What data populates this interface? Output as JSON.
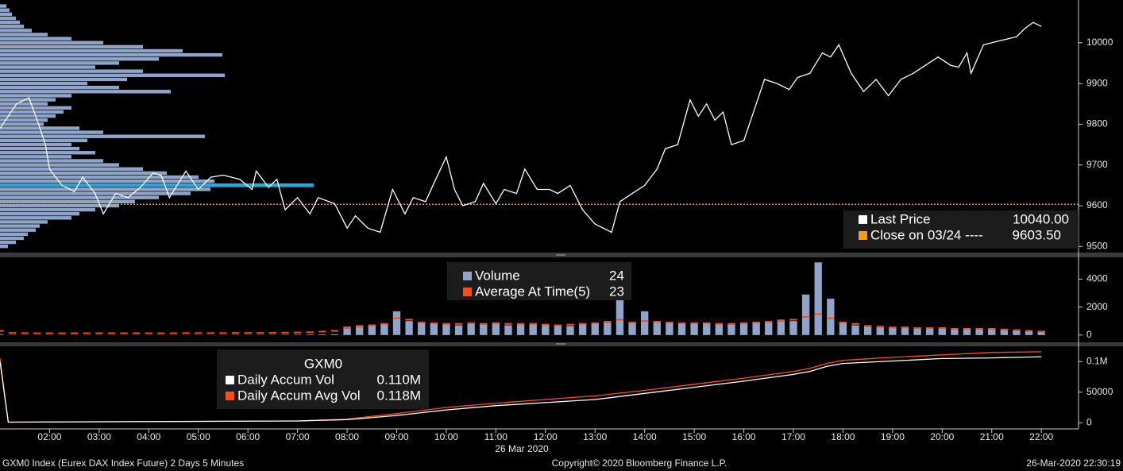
{
  "chart_data": [
    {
      "type": "line",
      "series": [
        {
          "name": "Last Price",
          "color": "#ffffff",
          "last_value": 10040,
          "last_value_label": "10040.00",
          "x": [
            "01:00",
            "01:20",
            "01:35",
            "01:45",
            "01:55",
            "02:00",
            "02:15",
            "02:30",
            "02:40",
            "02:55",
            "03:05",
            "03:20",
            "03:35",
            "03:50",
            "04:05",
            "04:15",
            "04:25",
            "04:45",
            "05:00",
            "05:15",
            "05:30",
            "05:50",
            "06:05",
            "06:10",
            "06:25",
            "06:35",
            "06:45",
            "07:00",
            "07:15",
            "07:25",
            "07:45",
            "08:00",
            "08:10",
            "08:25",
            "08:40",
            "08:55",
            "09:10",
            "09:20",
            "09:35",
            "09:45",
            "10:00",
            "10:10",
            "10:20",
            "10:35",
            "10:45",
            "11:00",
            "11:10",
            "11:25",
            "11:35",
            "11:50",
            "12:05",
            "12:15",
            "12:30",
            "12:45",
            "13:00",
            "13:20",
            "13:30",
            "13:45",
            "14:00",
            "14:15",
            "14:25",
            "14:40",
            "14:55",
            "15:05",
            "15:15",
            "15:25",
            "15:35",
            "15:45",
            "16:00",
            "16:15",
            "16:25",
            "16:40",
            "16:55",
            "17:05",
            "17:20",
            "17:35",
            "17:45",
            "17:55",
            "18:10",
            "18:25",
            "18:40",
            "18:55",
            "19:10",
            "19:25",
            "19:40",
            "19:55",
            "20:10",
            "20:20",
            "20:30",
            "20:35",
            "20:50",
            "21:10",
            "21:30",
            "21:40",
            "21:50",
            "22:00"
          ],
          "values": [
            9790,
            9850,
            9865,
            9810,
            9750,
            9690,
            9650,
            9635,
            9670,
            9630,
            9580,
            9630,
            9620,
            9645,
            9680,
            9675,
            9620,
            9685,
            9640,
            9670,
            9675,
            9665,
            9640,
            9685,
            9645,
            9665,
            9590,
            9620,
            9580,
            9620,
            9605,
            9545,
            9575,
            9545,
            9535,
            9640,
            9580,
            9620,
            9610,
            9655,
            9720,
            9640,
            9600,
            9610,
            9655,
            9605,
            9640,
            9630,
            9690,
            9640,
            9640,
            9630,
            9650,
            9590,
            9555,
            9535,
            9610,
            9630,
            9650,
            9690,
            9740,
            9750,
            9860,
            9820,
            9850,
            9810,
            9830,
            9750,
            9760,
            9850,
            9910,
            9900,
            9885,
            9915,
            9925,
            9975,
            9965,
            9995,
            9925,
            9880,
            9910,
            9870,
            9910,
            9925,
            9945,
            9965,
            9945,
            9940,
            9975,
            9925,
            9995,
            10005,
            10015,
            10035,
            10050,
            10040
          ]
        }
      ],
      "reference_line": {
        "name": "Close on 03/24 ----",
        "value": 9603.5,
        "value_label": "9603.50",
        "color": "#f39c12"
      },
      "volume_profile": {
        "color": "#8ea4c8",
        "poc_color": "#1fa8e0",
        "prices": [
          10090,
          10080,
          10070,
          10060,
          10050,
          10040,
          10030,
          10020,
          10010,
          10000,
          9990,
          9980,
          9970,
          9960,
          9950,
          9940,
          9930,
          9920,
          9910,
          9900,
          9890,
          9880,
          9870,
          9860,
          9850,
          9840,
          9830,
          9820,
          9810,
          9800,
          9790,
          9780,
          9770,
          9760,
          9750,
          9740,
          9730,
          9720,
          9710,
          9700,
          9690,
          9680,
          9670,
          9660,
          9650,
          9640,
          9630,
          9620,
          9610,
          9600,
          9590,
          9580,
          9570,
          9560,
          9550,
          9540,
          9530,
          9520,
          9510,
          9500
        ],
        "values": [
          8,
          12,
          15,
          20,
          25,
          30,
          40,
          60,
          90,
          130,
          180,
          230,
          280,
          200,
          150,
          120,
          180,
          283,
          160,
          110,
          150,
          215,
          90,
          70,
          60,
          90,
          80,
          70,
          60,
          55,
          100,
          130,
          258,
          110,
          90,
          100,
          120,
          90,
          130,
          150,
          180,
          210,
          250,
          270,
          395,
          265,
          240,
          200,
          170,
          150,
          120,
          100,
          90,
          60,
          50,
          45,
          35,
          30,
          20,
          10
        ]
      },
      "ylim": [
        9485,
        10105
      ],
      "yticks": [
        9500,
        9600,
        9700,
        9800,
        9900,
        10000
      ]
    },
    {
      "type": "bar",
      "x": [
        "01:00",
        "01:15",
        "01:30",
        "01:45",
        "02:00",
        "02:15",
        "02:30",
        "02:45",
        "03:00",
        "03:15",
        "03:30",
        "03:45",
        "04:00",
        "04:15",
        "04:30",
        "04:45",
        "05:00",
        "05:15",
        "05:30",
        "05:45",
        "06:00",
        "06:15",
        "06:30",
        "06:45",
        "07:00",
        "07:15",
        "07:30",
        "07:45",
        "08:00",
        "08:15",
        "08:30",
        "08:45",
        "09:00",
        "09:15",
        "09:30",
        "09:45",
        "10:00",
        "10:15",
        "10:30",
        "10:45",
        "11:00",
        "11:15",
        "11:30",
        "11:45",
        "12:00",
        "12:15",
        "12:30",
        "12:45",
        "13:00",
        "13:15",
        "13:30",
        "13:45",
        "14:00",
        "14:15",
        "14:30",
        "14:45",
        "15:00",
        "15:15",
        "15:30",
        "15:45",
        "16:00",
        "16:15",
        "16:30",
        "16:45",
        "17:00",
        "17:15",
        "17:30",
        "17:45",
        "18:00",
        "18:15",
        "18:30",
        "18:45",
        "19:00",
        "19:15",
        "19:30",
        "19:45",
        "20:00",
        "20:15",
        "20:30",
        "20:45",
        "21:00",
        "21:15",
        "21:30",
        "21:45",
        "22:00"
      ],
      "series": [
        {
          "name": "Volume",
          "color": "#8ea4c8",
          "last_value": 24,
          "values": [
            60,
            20,
            10,
            10,
            10,
            10,
            10,
            10,
            10,
            10,
            10,
            10,
            10,
            10,
            10,
            10,
            10,
            10,
            10,
            20,
            20,
            20,
            20,
            30,
            30,
            40,
            50,
            60,
            600,
            700,
            650,
            800,
            1700,
            1000,
            900,
            800,
            850,
            700,
            800,
            750,
            900,
            700,
            800,
            850,
            750,
            700,
            650,
            800,
            900,
            1000,
            2600,
            900,
            1700,
            1000,
            900,
            800,
            850,
            900,
            800,
            750,
            850,
            900,
            1000,
            1100,
            1000,
            2900,
            5200,
            2600,
            900,
            700,
            600,
            550,
            500,
            500,
            450,
            500,
            450,
            400,
            450,
            400,
            450,
            350,
            300,
            250,
            200
          ]
        },
        {
          "name": "Average At Time(5)",
          "color": "#ff4a1c",
          "last_value": 23,
          "values": [
            300,
            150,
            140,
            130,
            130,
            130,
            130,
            130,
            130,
            130,
            130,
            130,
            130,
            130,
            130,
            140,
            140,
            140,
            140,
            150,
            150,
            150,
            160,
            170,
            180,
            200,
            250,
            300,
            500,
            600,
            700,
            800,
            1200,
            1100,
            900,
            850,
            800,
            800,
            850,
            800,
            850,
            800,
            800,
            800,
            750,
            700,
            750,
            800,
            850,
            900,
            1100,
            900,
            1000,
            950,
            900,
            850,
            850,
            850,
            800,
            800,
            850,
            900,
            950,
            1000,
            1100,
            1300,
            1500,
            1200,
            900,
            800,
            650,
            600,
            550,
            550,
            500,
            500,
            500,
            450,
            450,
            450,
            450,
            400,
            350,
            300,
            250
          ]
        }
      ],
      "ylim": [
        -520,
        5560
      ],
      "yticks": [
        0,
        2000,
        4000
      ]
    },
    {
      "type": "line",
      "title": "GXM0",
      "series": [
        {
          "name": "Daily Accum Vol",
          "color": "#ffffff",
          "last_value": 110000,
          "last_value_label": "0.110M",
          "x": [
            "01:00",
            "01:10",
            "07:00",
            "08:00",
            "09:00",
            "10:00",
            "11:00",
            "12:00",
            "13:00",
            "14:00",
            "15:00",
            "16:00",
            "17:00",
            "17:20",
            "17:40",
            "18:00",
            "19:00",
            "20:00",
            "21:00",
            "22:00"
          ],
          "values": [
            100000,
            1000,
            3000,
            5000,
            12000,
            21000,
            28000,
            33000,
            38000,
            48000,
            58000,
            68000,
            79000,
            84000,
            92000,
            97000,
            101000,
            105000,
            106000,
            108000
          ]
        },
        {
          "name": "Daily Accum Avg Vol",
          "color": "#ff4a1c",
          "last_value": 118000,
          "last_value_label": "0.118M",
          "x": [
            "01:00",
            "01:10",
            "07:00",
            "08:00",
            "09:00",
            "10:00",
            "11:00",
            "12:00",
            "13:00",
            "14:00",
            "15:00",
            "16:00",
            "17:00",
            "17:20",
            "17:40",
            "18:00",
            "19:00",
            "20:00",
            "21:00",
            "22:00"
          ],
          "values": [
            105000,
            1000,
            3000,
            6000,
            15000,
            25000,
            32000,
            38000,
            44000,
            53000,
            63000,
            73000,
            84000,
            89000,
            97000,
            102000,
            107000,
            111000,
            115000,
            116000
          ]
        }
      ],
      "ylim": [
        -10000,
        125000
      ],
      "yticks": [
        0,
        50000,
        {
          "value": 100000,
          "label": "0.1M"
        }
      ],
      "xlim": [
        "01:00",
        "22:45"
      ],
      "xticks": [
        "02:00",
        "03:00",
        "04:00",
        "05:00",
        "06:00",
        "07:00",
        "08:00",
        "09:00",
        "10:00",
        "11:00",
        "12:00",
        "13:00",
        "14:00",
        "15:00",
        "16:00",
        "17:00",
        "18:00",
        "19:00",
        "20:00",
        "21:00",
        "22:00"
      ],
      "xlabel": "26 Mar 2020"
    }
  ],
  "footer": {
    "left": "GXM0 Index (Eurex DAX Index Future) 2 Days 5 Minutes",
    "center": "Copyright© 2020 Bloomberg Finance L.P.",
    "right": "26-Mar-2020 22:30:19"
  }
}
